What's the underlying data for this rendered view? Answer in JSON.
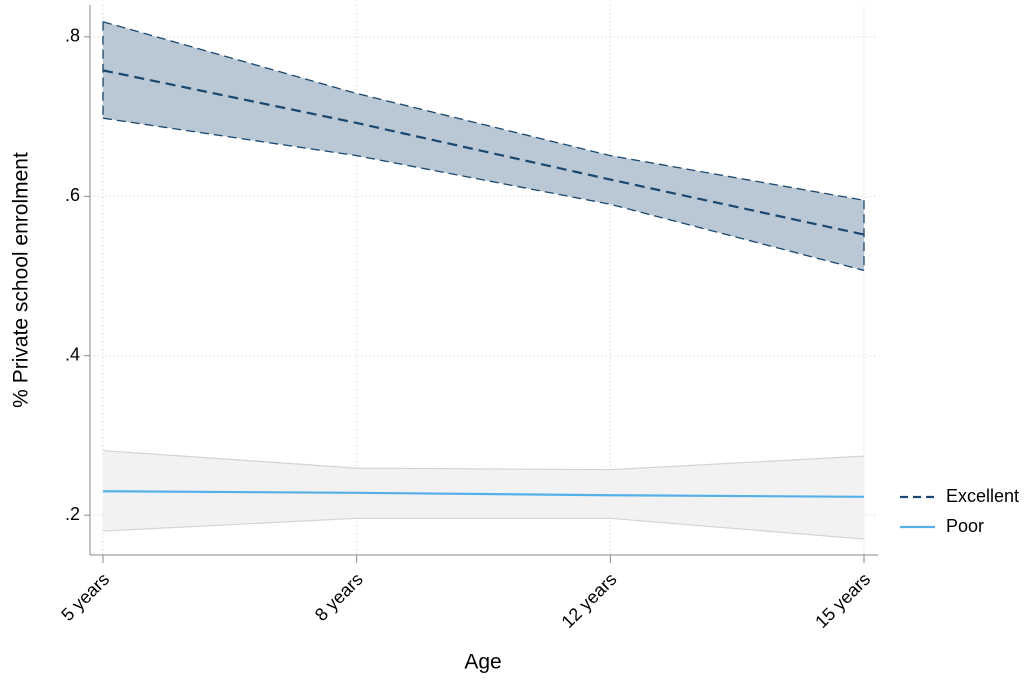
{
  "chart_data": {
    "type": "line",
    "xlabel": "Age",
    "ylabel": "% Private school enrolment",
    "categories": [
      "5 years",
      "8 years",
      "12 years",
      "15 years"
    ],
    "ylim": [
      0.15,
      0.84
    ],
    "yticks": [
      {
        "value": 0.2,
        "label": ".2"
      },
      {
        "value": 0.4,
        "label": ".4"
      },
      {
        "value": 0.6,
        "label": ".6"
      },
      {
        "value": 0.8,
        "label": ".8"
      }
    ],
    "grid": true,
    "legend": "right",
    "series": [
      {
        "name": "Excellent",
        "color": "#1a476f",
        "band_color": "#b9c8d4",
        "dashed": true,
        "values": [
          0.758,
          0.692,
          0.621,
          0.552
        ],
        "upper": [
          0.819,
          0.729,
          0.651,
          0.595
        ],
        "lower": [
          0.698,
          0.651,
          0.59,
          0.507
        ]
      },
      {
        "name": "Poor",
        "color": "#55b0e8",
        "band_color": "#f2f2f2",
        "dashed": false,
        "values": [
          0.23,
          0.228,
          0.225,
          0.223
        ],
        "upper": [
          0.281,
          0.259,
          0.257,
          0.274
        ],
        "lower": [
          0.18,
          0.196,
          0.196,
          0.17
        ]
      }
    ]
  }
}
